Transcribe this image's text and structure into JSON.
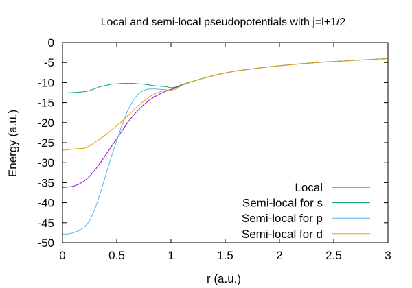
{
  "chart_data": {
    "type": "line",
    "title": "Local and semi-local pseudopotentials with j=l+1/2",
    "xlabel": "r (a.u.)",
    "ylabel": "Energy (a.u.)",
    "xlim": [
      0,
      3
    ],
    "ylim": [
      -50,
      0
    ],
    "xticks": [
      0,
      0.5,
      1,
      1.5,
      2,
      2.5,
      3
    ],
    "xtick_labels": [
      "0",
      "0.5",
      "1",
      "1.5",
      "2",
      "2.5",
      "3"
    ],
    "yticks": [
      0,
      -5,
      -10,
      -15,
      -20,
      -25,
      -30,
      -35,
      -40,
      -45,
      -50
    ],
    "ytick_labels": [
      "0",
      "-5",
      "-10",
      "-15",
      "-20",
      "-25",
      "-30",
      "-35",
      "-40",
      "-45",
      "-50"
    ],
    "grid": false,
    "legend_position": "bottom-right",
    "series": [
      {
        "name": "Local",
        "color": "#9400d3",
        "x": [
          0,
          0.05,
          0.1,
          0.15,
          0.2,
          0.25,
          0.3,
          0.35,
          0.4,
          0.45,
          0.5,
          0.55,
          0.6,
          0.65,
          0.7,
          0.75,
          0.8,
          0.85,
          0.9,
          0.95,
          1.0,
          1.05,
          1.1,
          1.2,
          1.3,
          1.4,
          1.5,
          1.6,
          1.8,
          2.0,
          2.2,
          2.4,
          2.6,
          2.8,
          3.0
        ],
        "y": [
          -36.2,
          -36.1,
          -35.9,
          -35.4,
          -34.6,
          -33.4,
          -31.8,
          -30.0,
          -28.0,
          -26.0,
          -24.0,
          -22.0,
          -20.0,
          -18.3,
          -16.8,
          -15.5,
          -14.4,
          -13.5,
          -12.8,
          -12.2,
          -11.7,
          -11.2,
          -10.6,
          -9.7,
          -8.9,
          -8.2,
          -7.6,
          -7.1,
          -6.4,
          -5.8,
          -5.3,
          -4.9,
          -4.6,
          -4.3,
          -4.0
        ]
      },
      {
        "name": "Semi-local for s",
        "color": "#009e73",
        "x": [
          0,
          0.1,
          0.2,
          0.25,
          0.3,
          0.35,
          0.4,
          0.45,
          0.5,
          0.55,
          0.6,
          0.65,
          0.7,
          0.75,
          0.8,
          0.85,
          0.9,
          0.95,
          1.0,
          1.05,
          1.1,
          1.2,
          1.3,
          1.4,
          1.5,
          1.6,
          1.8,
          2.0,
          2.2,
          2.4,
          2.6,
          2.8,
          3.0
        ],
        "y": [
          -12.6,
          -12.5,
          -12.3,
          -12.0,
          -11.5,
          -11.0,
          -10.7,
          -10.4,
          -10.3,
          -10.2,
          -10.2,
          -10.2,
          -10.3,
          -10.4,
          -10.6,
          -10.8,
          -10.9,
          -11.0,
          -11.3,
          -11.1,
          -10.5,
          -9.7,
          -8.9,
          -8.2,
          -7.6,
          -7.1,
          -6.4,
          -5.8,
          -5.3,
          -4.9,
          -4.6,
          -4.3,
          -4.0
        ]
      },
      {
        "name": "Semi-local for p",
        "color": "#56b4e9",
        "x": [
          0,
          0.05,
          0.1,
          0.15,
          0.2,
          0.25,
          0.3,
          0.35,
          0.4,
          0.45,
          0.5,
          0.55,
          0.6,
          0.65,
          0.7,
          0.75,
          0.8,
          0.85,
          0.9,
          0.95,
          1.0,
          1.05,
          1.1,
          1.2,
          1.3,
          1.4,
          1.5,
          1.6,
          1.8,
          2.0,
          2.2,
          2.4,
          2.6,
          2.8,
          3.0
        ],
        "y": [
          -47.8,
          -47.8,
          -47.5,
          -47.0,
          -46.2,
          -44.5,
          -41.5,
          -37.5,
          -33.0,
          -28.5,
          -24.5,
          -20.5,
          -17.0,
          -14.5,
          -12.8,
          -11.9,
          -11.6,
          -11.6,
          -11.7,
          -11.8,
          -11.9,
          -11.5,
          -10.6,
          -9.7,
          -8.9,
          -8.2,
          -7.6,
          -7.1,
          -6.4,
          -5.8,
          -5.3,
          -4.9,
          -4.6,
          -4.3,
          -4.0
        ]
      },
      {
        "name": "Semi-local for d",
        "color": "#e69f00",
        "x": [
          0,
          0.05,
          0.1,
          0.15,
          0.2,
          0.25,
          0.3,
          0.35,
          0.4,
          0.45,
          0.5,
          0.55,
          0.6,
          0.65,
          0.7,
          0.75,
          0.8,
          0.85,
          0.9,
          0.95,
          1.0,
          1.05,
          1.1,
          1.2,
          1.3,
          1.4,
          1.5,
          1.6,
          1.8,
          2.0,
          2.2,
          2.4,
          2.6,
          2.8,
          3.0
        ],
        "y": [
          -26.9,
          -26.8,
          -26.6,
          -26.5,
          -26.4,
          -25.8,
          -24.9,
          -24.0,
          -23.0,
          -21.9,
          -20.8,
          -19.6,
          -18.3,
          -17.0,
          -15.7,
          -14.6,
          -13.6,
          -12.8,
          -12.3,
          -12.0,
          -11.9,
          -11.6,
          -10.7,
          -9.7,
          -8.9,
          -8.2,
          -7.6,
          -7.1,
          -6.4,
          -5.8,
          -5.3,
          -4.9,
          -4.6,
          -4.3,
          -4.0
        ]
      }
    ]
  }
}
